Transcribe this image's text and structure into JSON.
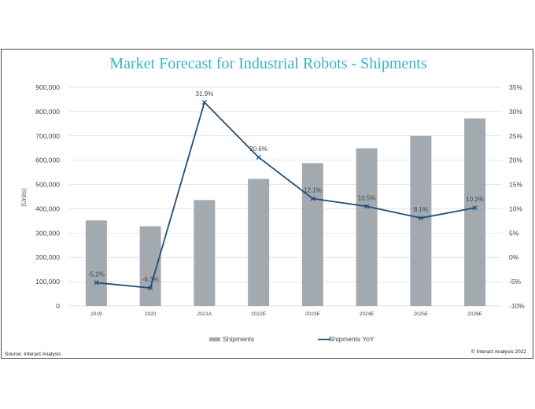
{
  "chart_data": {
    "type": "bar",
    "title": "Market Forecast for Industrial Robots - Shipments",
    "ylabel": "(Units)",
    "xlabel": "",
    "categories": [
      "2019",
      "2020",
      "2021A",
      "2022E",
      "2023E",
      "2024E",
      "2025E",
      "2026E"
    ],
    "series": [
      {
        "name": "Shipments",
        "type": "bar",
        "axis": "left",
        "color": "#a2aab0",
        "values": [
          352000,
          328000,
          436000,
          523000,
          588000,
          649000,
          700000,
          772000
        ]
      },
      {
        "name": "Shipments YoY",
        "type": "line",
        "axis": "right",
        "color": "#1f4e79",
        "values": [
          -5.2,
          -6.3,
          31.9,
          20.6,
          12.1,
          10.5,
          8.1,
          10.2
        ],
        "labels": [
          "-5.2%",
          "-6.3%",
          "31.9%",
          "20.6%",
          "12.1%",
          "10.5%",
          "8.1%",
          "10.2%"
        ]
      }
    ],
    "ylim": [
      0,
      900000
    ],
    "y_ticks": [
      "0",
      "100,000",
      "200,000",
      "300,000",
      "400,000",
      "500,000",
      "600,000",
      "700,000",
      "800,000",
      "900,000"
    ],
    "y2lim": [
      -10,
      35
    ],
    "y2_ticks": [
      "-10%",
      "-5%",
      "0%",
      "5%",
      "10%",
      "15%",
      "20%",
      "25%",
      "30%",
      "35%"
    ],
    "grid": true,
    "legend_position": "bottom"
  },
  "footer": {
    "source": "Source: Interact Analysis",
    "copyright": "© Interact Analysis 2022"
  }
}
